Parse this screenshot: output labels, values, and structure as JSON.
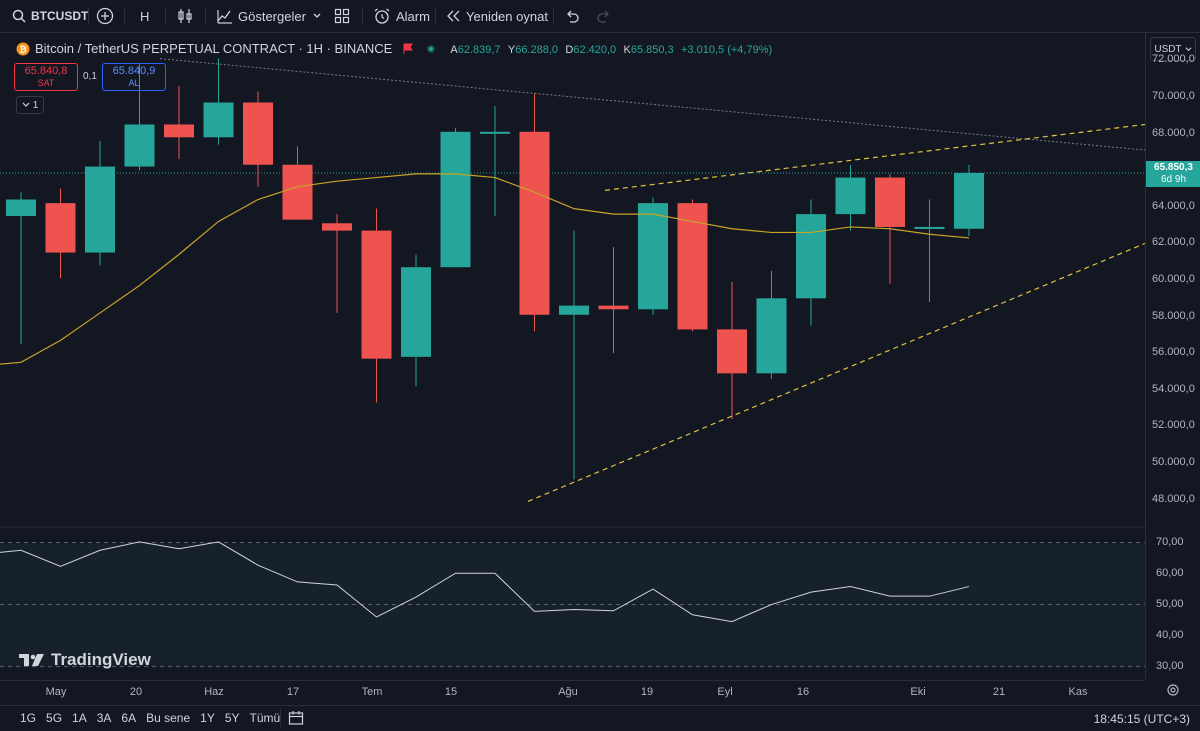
{
  "toolbar": {
    "symbol": "BTCUSDT",
    "interval": "H",
    "indicators_label": "Göstergeler",
    "alert_label": "Alarm",
    "replay_label": "Yeniden oynat"
  },
  "legend": {
    "title": "Bitcoin / TetherUS PERPETUAL CONTRACT · 1H · BINANCE",
    "open_key": "A",
    "open": "62.839,7",
    "high_key": "Y",
    "high": "66.288,0",
    "low_key": "D",
    "low": "62.420,0",
    "close_key": "K",
    "close": "65.850,3",
    "change": "+3.010,5 (+4,79%)"
  },
  "trade": {
    "sell_price": "65.840,8",
    "sell_label": "SAT",
    "spread": "0,1",
    "buy_price": "65.840,9",
    "buy_label": "AL",
    "indicator_count": "1"
  },
  "price_axis": {
    "currency": "USDT",
    "current_price": "65.850,3",
    "countdown": "6d 9h",
    "labels": [
      "72.000,0",
      "70.000,0",
      "68.000,0",
      "64.000,0",
      "62.000,0",
      "60.000,0",
      "58.000,0",
      "56.000,0",
      "54.000,0",
      "52.000,0",
      "50.000,0",
      "48.000,0"
    ],
    "osc_labels": [
      "70,00",
      "60,00",
      "50,00",
      "40,00",
      "30,00"
    ]
  },
  "time_axis": {
    "labels": [
      "May",
      "20",
      "Haz",
      "17",
      "Tem",
      "15",
      "Ağu",
      "19",
      "Eyl",
      "16",
      "Eki",
      "21",
      "Kas"
    ]
  },
  "watermark": "TradingView",
  "bottom": {
    "ranges": [
      "1G",
      "5G",
      "1A",
      "3A",
      "6A",
      "Bu sene",
      "1Y",
      "5Y",
      "Tümü"
    ],
    "clock": "18:45:15 (UTC+3)"
  },
  "colors": {
    "up": "#26a69a",
    "down": "#ef5350",
    "ma": "#c9a227",
    "trend": "#e0c341"
  },
  "chart_data": {
    "type": "candlestick",
    "candles": [
      {
        "o": 63.5,
        "h": 64.8,
        "l": 56.5,
        "c": 64.4
      },
      {
        "o": 64.2,
        "h": 65.0,
        "l": 60.1,
        "c": 61.5
      },
      {
        "o": 61.5,
        "h": 67.6,
        "l": 60.8,
        "c": 66.2
      },
      {
        "o": 66.2,
        "h": 71.8,
        "l": 66.0,
        "c": 68.5
      },
      {
        "o": 68.5,
        "h": 70.6,
        "l": 66.6,
        "c": 67.8
      },
      {
        "o": 67.8,
        "h": 72.1,
        "l": 67.4,
        "c": 69.7
      },
      {
        "o": 69.7,
        "h": 70.3,
        "l": 65.1,
        "c": 66.3
      },
      {
        "o": 66.3,
        "h": 67.3,
        "l": 63.3,
        "c": 63.3
      },
      {
        "o": 63.1,
        "h": 63.6,
        "l": 58.2,
        "c": 62.7
      },
      {
        "o": 62.7,
        "h": 63.9,
        "l": 53.3,
        "c": 55.7
      },
      {
        "o": 55.8,
        "h": 61.4,
        "l": 54.2,
        "c": 60.7
      },
      {
        "o": 60.7,
        "h": 68.3,
        "l": 60.7,
        "c": 68.1
      },
      {
        "o": 68.0,
        "h": 69.5,
        "l": 63.5,
        "c": 68.1
      },
      {
        "o": 68.1,
        "h": 70.2,
        "l": 57.2,
        "c": 58.1
      },
      {
        "o": 58.1,
        "h": 62.7,
        "l": 49.1,
        "c": 58.6
      },
      {
        "o": 58.6,
        "h": 61.8,
        "l": 56.0,
        "c": 58.4
      },
      {
        "o": 58.4,
        "h": 64.5,
        "l": 58.1,
        "c": 64.2
      },
      {
        "o": 64.2,
        "h": 64.4,
        "l": 57.2,
        "c": 57.3
      },
      {
        "o": 57.3,
        "h": 59.9,
        "l": 52.4,
        "c": 54.9
      },
      {
        "o": 54.9,
        "h": 60.5,
        "l": 54.6,
        "c": 59.0
      },
      {
        "o": 59.0,
        "h": 64.4,
        "l": 57.5,
        "c": 63.6
      },
      {
        "o": 63.6,
        "h": 66.3,
        "l": 62.7,
        "c": 65.6
      },
      {
        "o": 65.6,
        "h": 65.8,
        "l": 59.8,
        "c": 62.9
      },
      {
        "o": 62.8,
        "h": 64.4,
        "l": 58.8,
        "c": 62.9
      },
      {
        "o": 62.8,
        "h": 66.3,
        "l": 62.4,
        "c": 65.85
      }
    ],
    "ma": [
      55.5,
      56.7,
      58.2,
      59.7,
      61.4,
      63.2,
      64.4,
      65.1,
      65.4,
      65.6,
      65.8,
      65.8,
      65.6,
      64.8,
      63.9,
      63.6,
      63.6,
      63.2,
      62.8,
      62.6,
      62.6,
      62.9,
      62.8,
      62.5,
      62.3
    ],
    "oscillator": [
      67.5,
      62.3,
      67.5,
      70.2,
      68.0,
      70.2,
      62.7,
      57.3,
      56.3,
      46.0,
      52.4,
      60.1,
      60.1,
      47.8,
      48.4,
      48.0,
      55.0,
      46.7,
      44.5,
      50.0,
      54.0,
      55.8,
      52.7,
      52.7,
      55.8
    ],
    "osc_bands": [
      30,
      50,
      70
    ],
    "ylim": [
      46.5,
      73.5
    ],
    "osc_ylim": [
      26,
      75
    ]
  }
}
